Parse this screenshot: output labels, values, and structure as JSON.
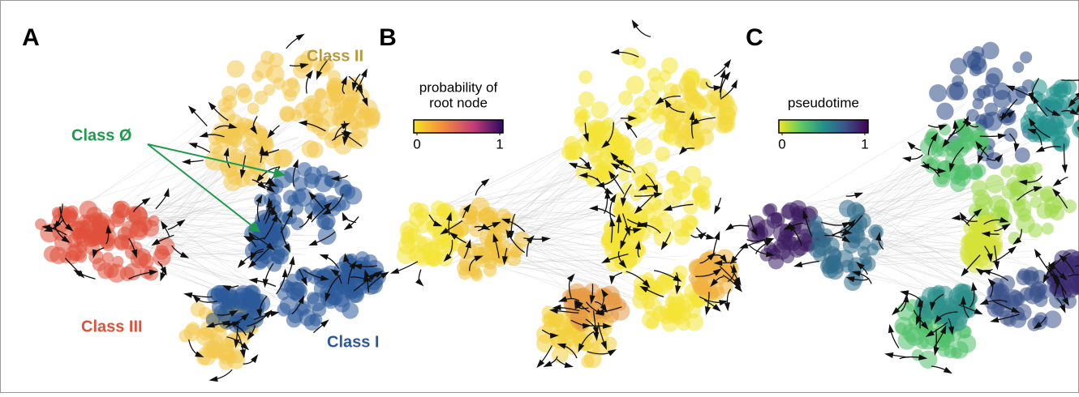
{
  "panels": [
    {
      "letter": "A",
      "labels": [
        {
          "text": "Class II",
          "color": "#b8993c"
        },
        {
          "text": "Class Ø",
          "color": "#1e9a4c"
        },
        {
          "text": "Class III",
          "color": "#e0513a"
        },
        {
          "text": "Class I",
          "color": "#2c5a99"
        }
      ]
    },
    {
      "letter": "B",
      "colorbar": {
        "title": [
          "probability of",
          "root node"
        ],
        "lim": [
          0,
          1
        ],
        "ticks": [
          0,
          1
        ],
        "colors": [
          "#f7e225",
          "#f38b3c",
          "#c53c7a",
          "#2a0a5e"
        ]
      }
    },
    {
      "letter": "C",
      "colorbar": {
        "title": [
          "pseudotime"
        ],
        "lim": [
          0,
          1
        ],
        "ticks": [
          0,
          1
        ],
        "colors": [
          "#f4e61e",
          "#5ec962",
          "#21918c",
          "#3b528b",
          "#440154"
        ]
      }
    }
  ]
}
